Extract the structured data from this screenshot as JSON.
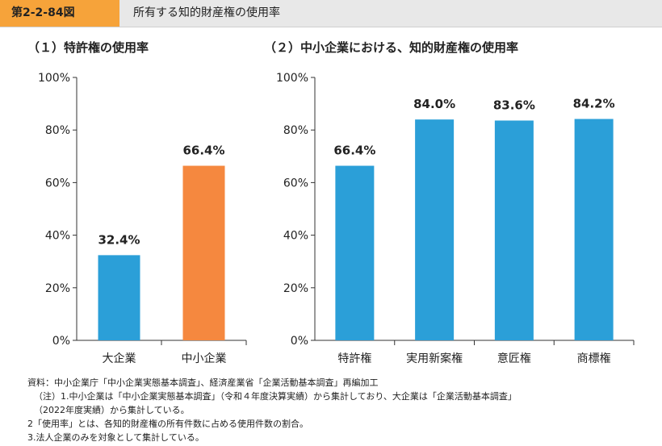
{
  "header": {
    "figure_number": "第2-2-84図",
    "title": "所有する知的財産権の使用率",
    "accent_color": "#f6a33a"
  },
  "chart_data": [
    {
      "type": "bar",
      "title": "（１）特許権の使用率",
      "categories": [
        "大企業",
        "中小企業"
      ],
      "values": [
        32.4,
        66.4
      ],
      "value_labels": [
        "32.4%",
        "66.4%"
      ],
      "colors": [
        "#2b9fd8",
        "#f5883f"
      ],
      "ylim": [
        0,
        100
      ],
      "yticks": [
        "0%",
        "20%",
        "40%",
        "60%",
        "80%",
        "100%"
      ],
      "grid": false
    },
    {
      "type": "bar",
      "title": "（２）中小企業における、知的財産権の使用率",
      "categories": [
        "特許権",
        "実用新案権",
        "意匠権",
        "商標権"
      ],
      "values": [
        66.4,
        84.0,
        83.6,
        84.2
      ],
      "value_labels": [
        "66.4%",
        "84.0%",
        "83.6%",
        "84.2%"
      ],
      "colors": [
        "#2b9fd8",
        "#2b9fd8",
        "#2b9fd8",
        "#2b9fd8"
      ],
      "ylim": [
        0,
        100
      ],
      "yticks": [
        "0%",
        "20%",
        "40%",
        "60%",
        "80%",
        "100%"
      ],
      "grid": false
    }
  ],
  "notes": [
    "資料：中小企業庁「中小企業実態基本調査」、経済産業省「企業活動基本調査」再編加工",
    "（注）1.中小企業は「中小企業実態基本調査」（令和４年度決算実績）から集計しており、大企業は「企業活動基本調査」",
    "（2022年度実績）から集計している。",
    "2「使用率」とは、各知的財産権の所有件数に占める使用件数の割合。",
    "3.法人企業のみを対象として集計している。"
  ]
}
